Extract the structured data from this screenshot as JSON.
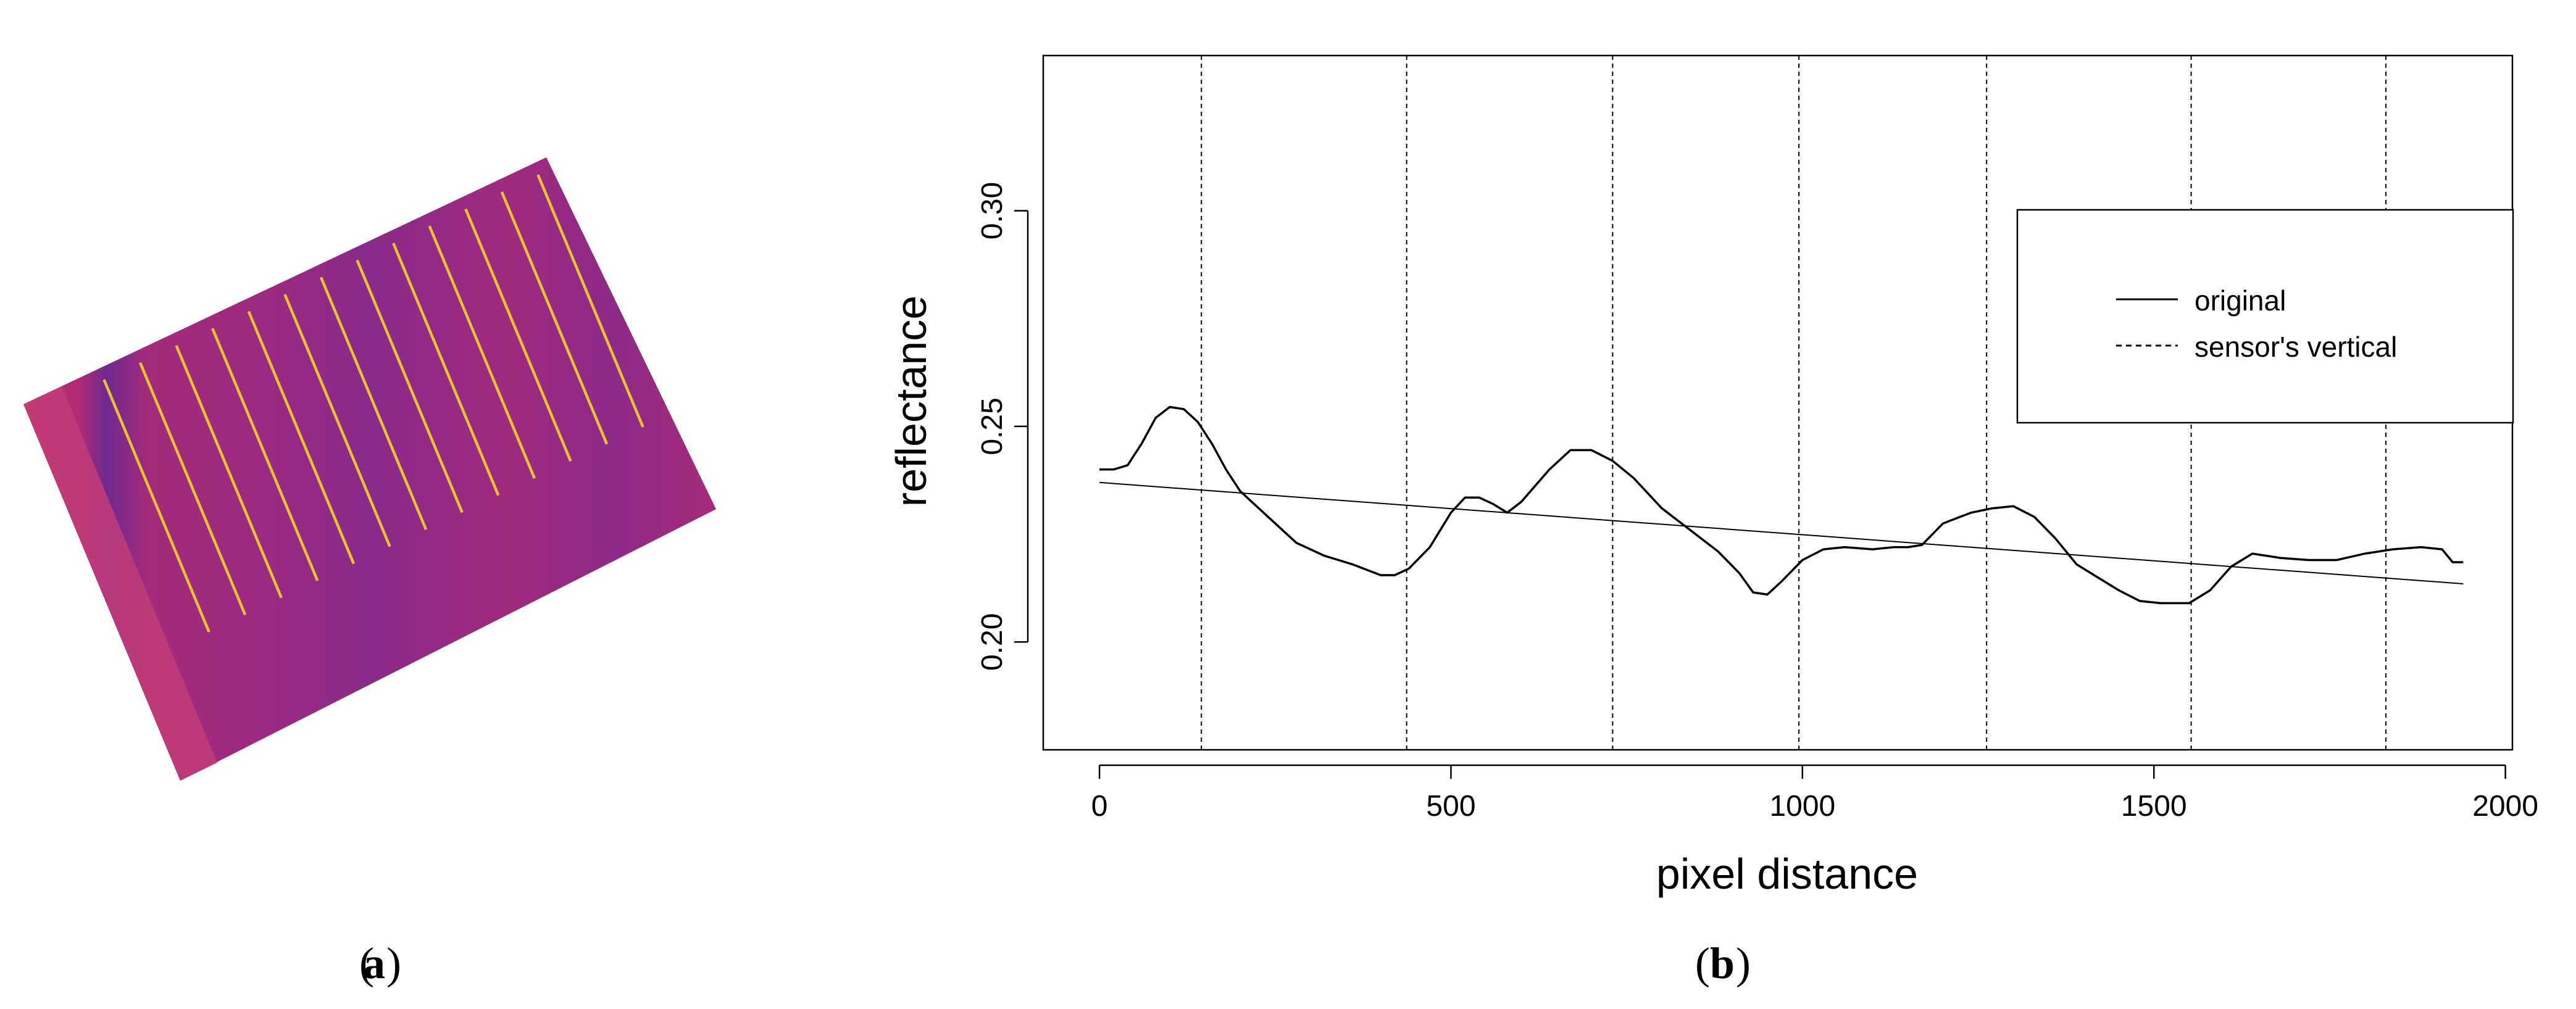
{
  "panels": {
    "a": {
      "label": "a"
    },
    "b": {
      "label": "b"
    }
  },
  "colors": {
    "panel_bg": "#a8287d",
    "panel_stripe_dark": "#7a2892",
    "panel_edge": "#c63f77",
    "sensor_lines": "#e8c236"
  },
  "image_panel": {
    "description_icon": "thermal-image-rotated",
    "sensor_line_count": 13
  },
  "chart_data": {
    "type": "line",
    "xlabel": "pixel distance",
    "ylabel": "reflectance",
    "xlim": [
      -80,
      2010
    ],
    "ylim": [
      0.175,
      0.336
    ],
    "x_ticks": [
      0,
      500,
      1000,
      1500,
      2000
    ],
    "x_tick_labels": [
      "0",
      "500",
      "1000",
      "1500",
      "2000"
    ],
    "y_ticks": [
      0.2,
      0.25,
      0.3
    ],
    "y_tick_labels": [
      "0.20",
      "0.25",
      "0.30"
    ],
    "grid": false,
    "legend": {
      "position": "top-right",
      "entries": [
        "original",
        "sensor's vertical"
      ]
    },
    "series": [
      {
        "name": "original",
        "style": "solid",
        "points": [
          [
            0,
            0.24
          ],
          [
            20,
            0.24
          ],
          [
            40,
            0.241
          ],
          [
            60,
            0.246
          ],
          [
            80,
            0.252
          ],
          [
            100,
            0.2545
          ],
          [
            120,
            0.254
          ],
          [
            140,
            0.251
          ],
          [
            160,
            0.246
          ],
          [
            180,
            0.24
          ],
          [
            200,
            0.235
          ],
          [
            240,
            0.229
          ],
          [
            280,
            0.223
          ],
          [
            320,
            0.22
          ],
          [
            360,
            0.218
          ],
          [
            400,
            0.2155
          ],
          [
            420,
            0.2155
          ],
          [
            440,
            0.217
          ],
          [
            470,
            0.222
          ],
          [
            500,
            0.23
          ],
          [
            520,
            0.2335
          ],
          [
            540,
            0.2335
          ],
          [
            560,
            0.232
          ],
          [
            580,
            0.23
          ],
          [
            600,
            0.2325
          ],
          [
            640,
            0.24
          ],
          [
            670,
            0.2445
          ],
          [
            700,
            0.2445
          ],
          [
            730,
            0.242
          ],
          [
            760,
            0.238
          ],
          [
            800,
            0.231
          ],
          [
            840,
            0.226
          ],
          [
            880,
            0.221
          ],
          [
            910,
            0.216
          ],
          [
            930,
            0.2115
          ],
          [
            950,
            0.211
          ],
          [
            970,
            0.214
          ],
          [
            1000,
            0.219
          ],
          [
            1030,
            0.2215
          ],
          [
            1060,
            0.222
          ],
          [
            1100,
            0.2215
          ],
          [
            1130,
            0.222
          ],
          [
            1150,
            0.222
          ],
          [
            1170,
            0.2225
          ],
          [
            1200,
            0.2275
          ],
          [
            1240,
            0.23
          ],
          [
            1270,
            0.231
          ],
          [
            1300,
            0.2315
          ],
          [
            1330,
            0.229
          ],
          [
            1360,
            0.224
          ],
          [
            1390,
            0.218
          ],
          [
            1420,
            0.215
          ],
          [
            1450,
            0.212
          ],
          [
            1480,
            0.2095
          ],
          [
            1510,
            0.209
          ],
          [
            1550,
            0.209
          ],
          [
            1580,
            0.212
          ],
          [
            1610,
            0.2175
          ],
          [
            1640,
            0.2205
          ],
          [
            1680,
            0.2195
          ],
          [
            1720,
            0.219
          ],
          [
            1760,
            0.219
          ],
          [
            1800,
            0.2205
          ],
          [
            1840,
            0.2215
          ],
          [
            1880,
            0.222
          ],
          [
            1910,
            0.2215
          ],
          [
            1925,
            0.2185
          ],
          [
            1940,
            0.2185
          ]
        ]
      },
      {
        "name": "",
        "style": "thin",
        "points": [
          [
            0,
            0.237
          ],
          [
            1940,
            0.2135
          ]
        ]
      }
    ],
    "vertical_lines": [
      145,
      437,
      730,
      995,
      1262,
      1553,
      1830
    ]
  }
}
